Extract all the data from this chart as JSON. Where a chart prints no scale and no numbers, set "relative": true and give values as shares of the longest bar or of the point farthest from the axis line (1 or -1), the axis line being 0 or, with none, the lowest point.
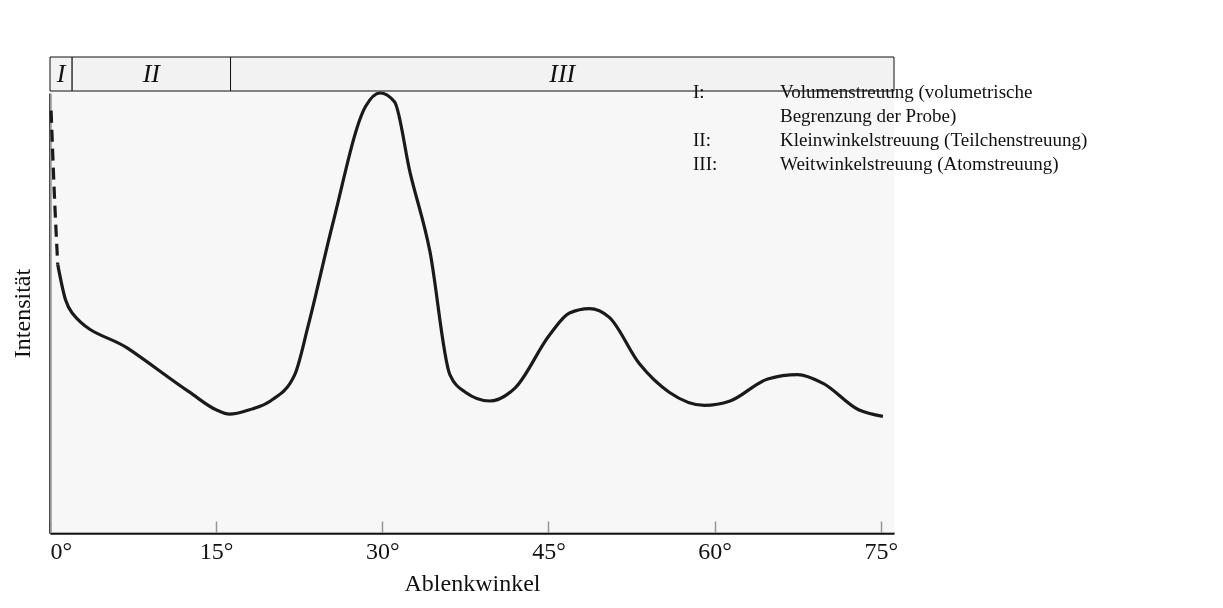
{
  "chart_data": {
    "type": "line",
    "relative": true,
    "xlabel": "Ablenkwinkel",
    "ylabel": "Intensität",
    "xlim": [
      0,
      76.2
    ],
    "xticks": [
      {
        "value": 0,
        "label": "0°"
      },
      {
        "value": 15,
        "label": "15°"
      },
      {
        "value": 30,
        "label": "30°"
      },
      {
        "value": 45,
        "label": "45°"
      },
      {
        "value": 60,
        "label": "60°"
      },
      {
        "value": 75,
        "label": "75°"
      }
    ],
    "series": [
      {
        "color": "#1a1a1a",
        "line_style": "dashed",
        "x": [
          0.1,
          0.36,
          0.7
        ],
        "values": [
          0.96,
          0.79,
          0.61
        ]
      },
      {
        "color": "#1a1a1a",
        "line_style": "solid",
        "x": [
          0.7,
          1.4,
          2.0,
          7.0,
          12.6,
          15.0,
          16.2,
          18.0,
          19.9,
          22.1,
          23.3,
          25.5,
          28.5,
          29.8,
          31.1,
          32.5,
          34.3,
          36.1,
          37.5,
          39.7,
          42.0,
          45.1,
          46.9,
          48.7,
          50.5,
          53.2,
          55.9,
          59.1,
          61.4,
          64.8,
          67.5,
          69.8,
          73.0,
          75.2
        ],
        "values": [
          0.61,
          0.53,
          0.5,
          0.42,
          0.32,
          0.28,
          0.27,
          0.28,
          0.3,
          0.36,
          0.47,
          0.7,
          0.97,
          1.0,
          0.98,
          0.82,
          0.64,
          0.36,
          0.32,
          0.3,
          0.33,
          0.45,
          0.5,
          0.51,
          0.49,
          0.385,
          0.32,
          0.29,
          0.3,
          0.35,
          0.36,
          0.34,
          0.28,
          0.265
        ]
      }
    ],
    "bands": [
      {
        "axis": "x",
        "from": 0,
        "to": 2.0,
        "label": "I"
      },
      {
        "axis": "x",
        "from": 2.0,
        "to": 16.3,
        "label": "II"
      },
      {
        "axis": "x",
        "from": 16.3,
        "to": 76.2,
        "label": "III"
      }
    ],
    "annotations": [
      "I: Volumenstreuung (volumetrische Begrenzung der Probe)",
      "II: Kleinwinkelstreuung (Teilchenstreuung)",
      "III: Weitwinkelstreuung (Atomstreuung)"
    ],
    "grid": false
  }
}
